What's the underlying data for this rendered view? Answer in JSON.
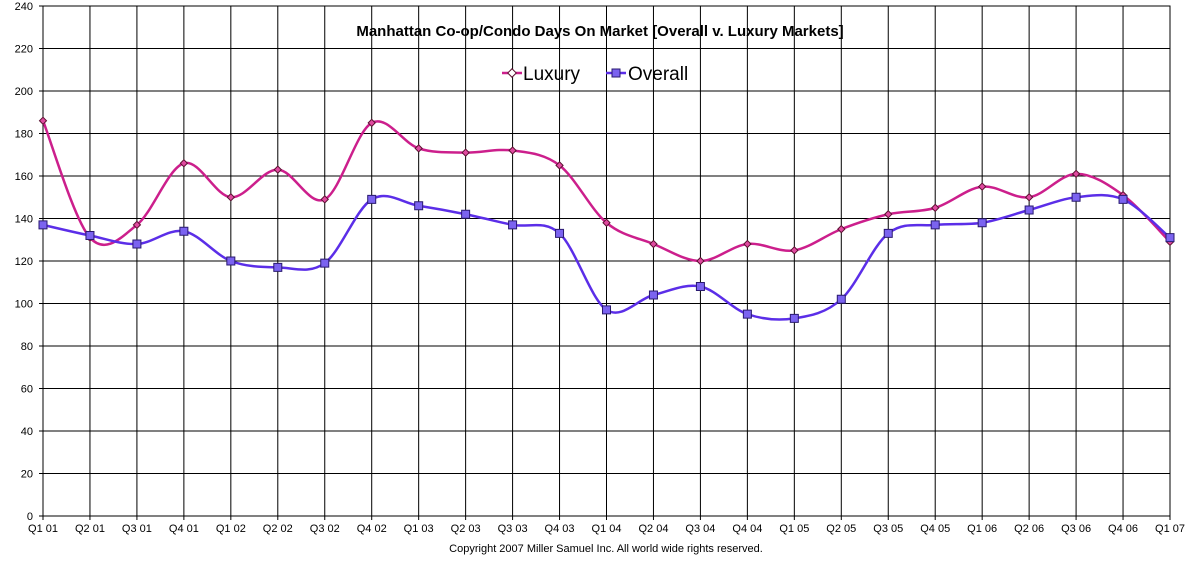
{
  "chart_data": {
    "type": "line",
    "title": "Manhattan Co-op/Condo Days On Market [Overall v. Luxury Markets]",
    "xlabel": "",
    "ylabel": "",
    "ylim": [
      0,
      240
    ],
    "yticks": [
      0,
      20,
      40,
      60,
      80,
      100,
      120,
      140,
      160,
      180,
      200,
      220,
      240
    ],
    "grid": true,
    "legend_position": "top-center",
    "categories": [
      "Q1 01",
      "Q2 01",
      "Q3 01",
      "Q4 01",
      "Q1 02",
      "Q2 02",
      "Q3 02",
      "Q4 02",
      "Q1 03",
      "Q2 03",
      "Q3 03",
      "Q4 03",
      "Q1 04",
      "Q2 04",
      "Q3 04",
      "Q4 04",
      "Q1 05",
      "Q2 05",
      "Q3 05",
      "Q4 05",
      "Q1 06",
      "Q2 06",
      "Q3 06",
      "Q4 06",
      "Q1 07"
    ],
    "series": [
      {
        "name": "Luxury",
        "color": "#cc1f8c",
        "marker": "diamond",
        "values": [
          186,
          131,
          137,
          166,
          150,
          163,
          149,
          185,
          173,
          171,
          172,
          165,
          138,
          128,
          120,
          128,
          125,
          135,
          142,
          145,
          155,
          150,
          161,
          151,
          129
        ]
      },
      {
        "name": "Overall",
        "color": "#5b2ee8",
        "marker": "square",
        "values": [
          137,
          132,
          128,
          134,
          120,
          117,
          119,
          149,
          146,
          142,
          137,
          133,
          97,
          104,
          108,
          95,
          93,
          102,
          133,
          137,
          138,
          144,
          150,
          149,
          131
        ]
      }
    ],
    "footnote": "Copyright 2007 Miller Samuel Inc.  All world wide rights reserved."
  }
}
